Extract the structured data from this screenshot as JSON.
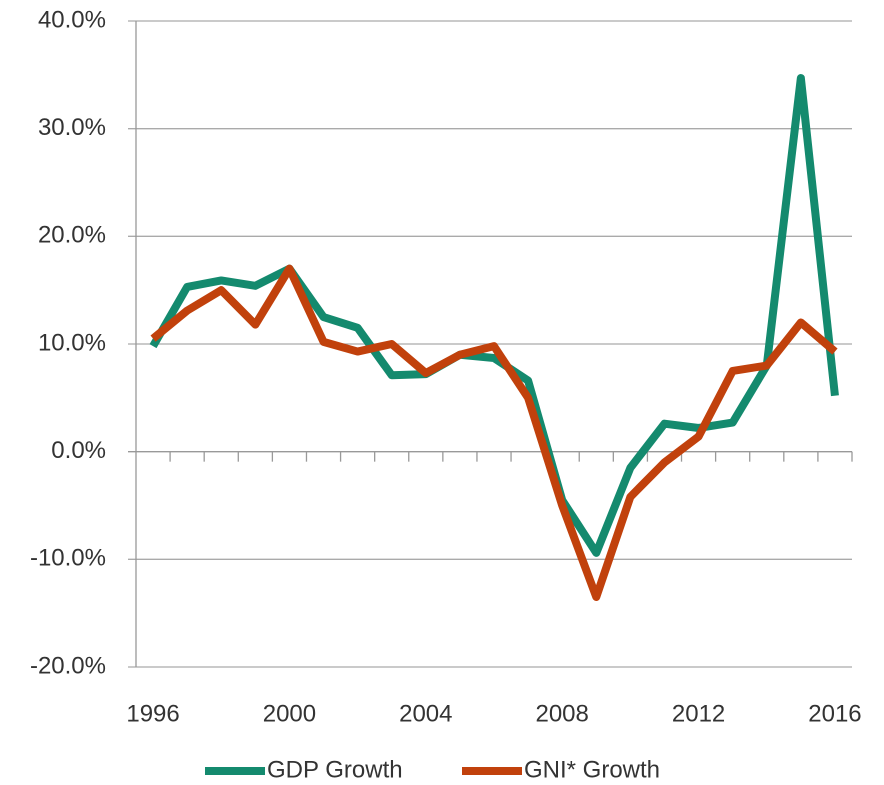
{
  "chart_data": {
    "type": "line",
    "categories": [
      "1996",
      null,
      null,
      null,
      "2000",
      null,
      null,
      null,
      "2004",
      null,
      null,
      null,
      "2008",
      null,
      null,
      null,
      "2012",
      null,
      null,
      null,
      "2016"
    ],
    "series": [
      {
        "name": "GDP Growth",
        "color": "#148a6e",
        "values": [
          9.8,
          15.3,
          15.9,
          15.4,
          17.0,
          12.5,
          11.5,
          7.1,
          7.2,
          9.0,
          8.7,
          6.6,
          -4.5,
          -9.4,
          -1.5,
          2.6,
          2.2,
          2.7,
          8.0,
          34.7,
          5.2
        ]
      },
      {
        "name": "GNI* Growth",
        "color": "#c1410c",
        "values": [
          10.5,
          13.1,
          15.0,
          11.8,
          17.0,
          10.2,
          9.3,
          10.0,
          7.3,
          9.0,
          9.8,
          5.0,
          -5.0,
          -13.5,
          -4.2,
          -1.0,
          1.4,
          7.5,
          8.0,
          12.0,
          9.3
        ]
      }
    ],
    "ylim": [
      -20,
      40
    ],
    "yticks": [
      {
        "value": -20,
        "label": "-20.0%"
      },
      {
        "value": -10,
        "label": "-10.0%"
      },
      {
        "value": 0,
        "label": "0.0%"
      },
      {
        "value": 10,
        "label": "10.0%"
      },
      {
        "value": 20,
        "label": "20.0%"
      },
      {
        "value": 30,
        "label": "30.0%"
      },
      {
        "value": 40,
        "label": "40.0%"
      }
    ],
    "grid": true,
    "legend": "bottom"
  }
}
